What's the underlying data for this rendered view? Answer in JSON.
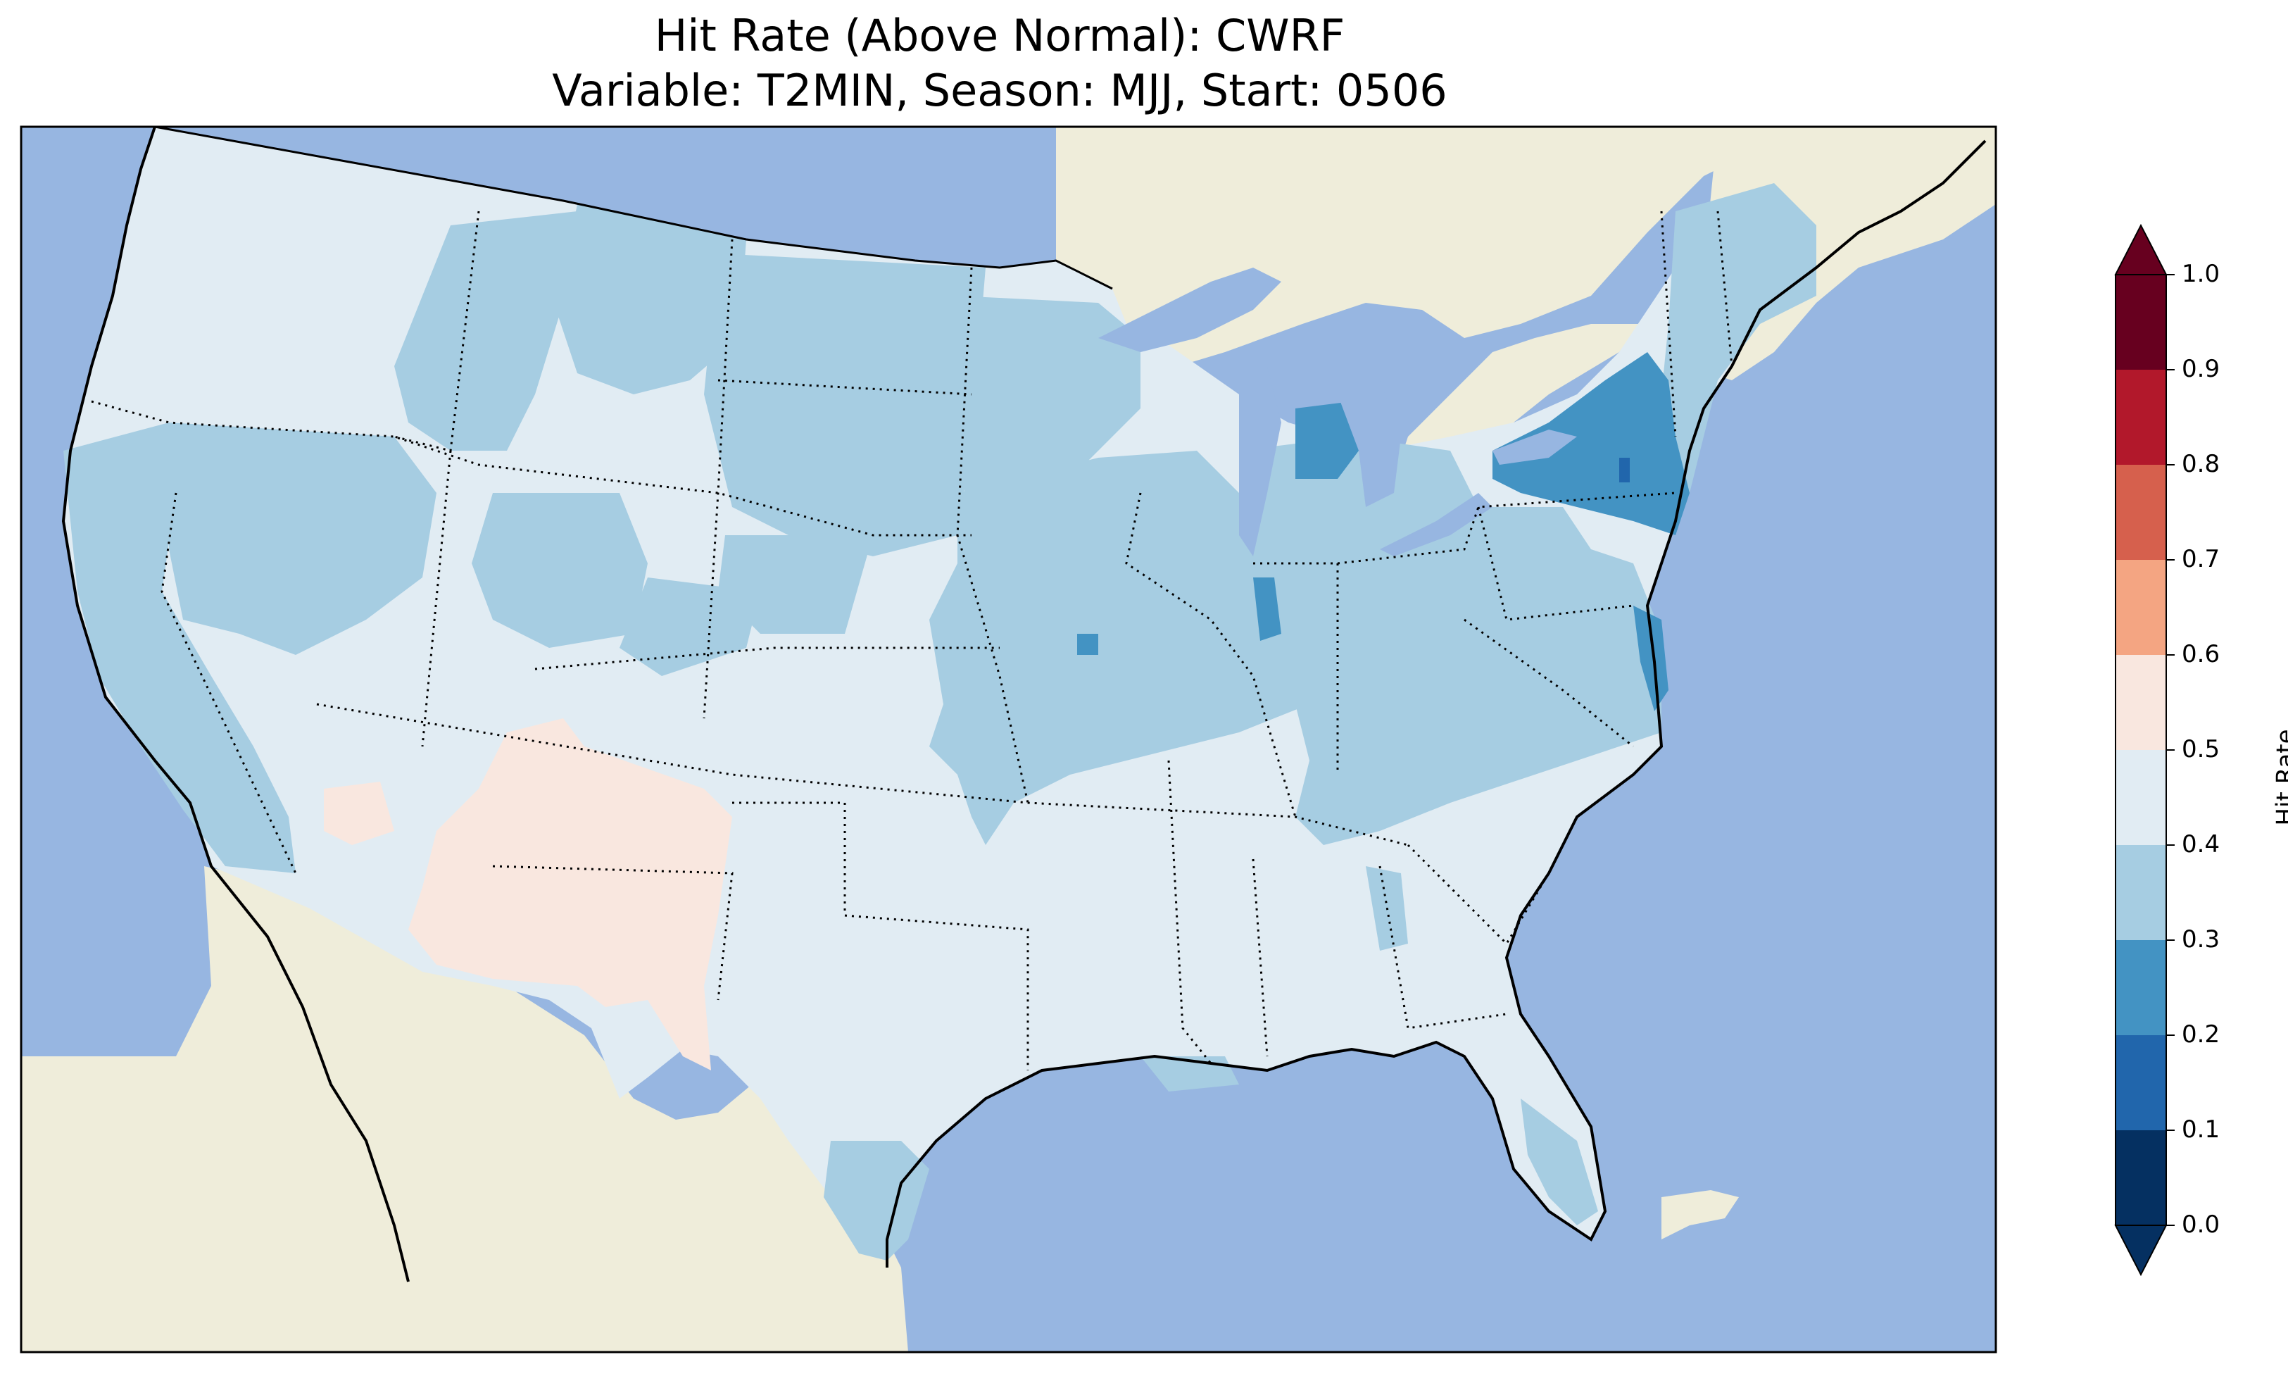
{
  "map": {
    "title": "Hit Rate (Above Normal): CWRF",
    "subtitle": "Variable: T2MIN, Season: MJJ, Start: 0506"
  },
  "colors": {
    "ocean": "#97b6e1",
    "land": "#efedda",
    "lakes": "#97b6e1"
  },
  "colorbar": {
    "label": "Hit Rate",
    "ticks": [
      "0.0",
      "0.1",
      "0.2",
      "0.3",
      "0.4",
      "0.5",
      "0.6",
      "0.7",
      "0.8",
      "0.9",
      "1.0"
    ],
    "bins": [
      {
        "range": [
          0.0,
          0.1
        ],
        "color": "#053061"
      },
      {
        "range": [
          0.1,
          0.2
        ],
        "color": "#2166ac"
      },
      {
        "range": [
          0.2,
          0.3
        ],
        "color": "#4393c3"
      },
      {
        "range": [
          0.3,
          0.4
        ],
        "color": "#a6cde2"
      },
      {
        "range": [
          0.4,
          0.5
        ],
        "color": "#e1ecf3"
      },
      {
        "range": [
          0.5,
          0.6
        ],
        "color": "#f9e7df"
      },
      {
        "range": [
          0.6,
          0.7
        ],
        "color": "#f4a582"
      },
      {
        "range": [
          0.7,
          0.8
        ],
        "color": "#d6604d"
      },
      {
        "range": [
          0.8,
          0.9
        ],
        "color": "#b2182b"
      },
      {
        "range": [
          0.9,
          1.0
        ],
        "color": "#67001f"
      }
    ]
  },
  "regions": [
    {
      "name": "CONUS background",
      "hit_rate_bin": [
        0.4,
        0.5
      ]
    },
    {
      "name": "Pacific Northwest / Great Basin patches",
      "hit_rate_bin": [
        0.3,
        0.4
      ]
    },
    {
      "name": "California",
      "hit_rate_bin": [
        0.3,
        0.4
      ]
    },
    {
      "name": "Northern Plains",
      "hit_rate_bin": [
        0.3,
        0.4
      ]
    },
    {
      "name": "Midwest",
      "hit_rate_bin": [
        0.3,
        0.4
      ]
    },
    {
      "name": "Ohio Valley / Mid-Atlantic",
      "hit_rate_bin": [
        0.3,
        0.4
      ]
    },
    {
      "name": "New England",
      "hit_rate_bin": [
        0.3,
        0.4
      ]
    },
    {
      "name": "South Texas",
      "hit_rate_bin": [
        0.3,
        0.4
      ]
    },
    {
      "name": "New York / Pennsylvania",
      "hit_rate_bin": [
        0.2,
        0.3
      ]
    },
    {
      "name": "Michigan patch",
      "hit_rate_bin": [
        0.2,
        0.3
      ]
    },
    {
      "name": "Chesapeake / Delmarva",
      "hit_rate_bin": [
        0.2,
        0.3
      ]
    },
    {
      "name": "Illinois patch",
      "hit_rate_bin": [
        0.2,
        0.3
      ]
    },
    {
      "name": "Southwest (Arizona / New Mexico / West Texas)",
      "hit_rate_bin": [
        0.5,
        0.6
      ]
    },
    {
      "name": "New York pixel",
      "hit_rate_bin": [
        0.1,
        0.2
      ]
    }
  ]
}
